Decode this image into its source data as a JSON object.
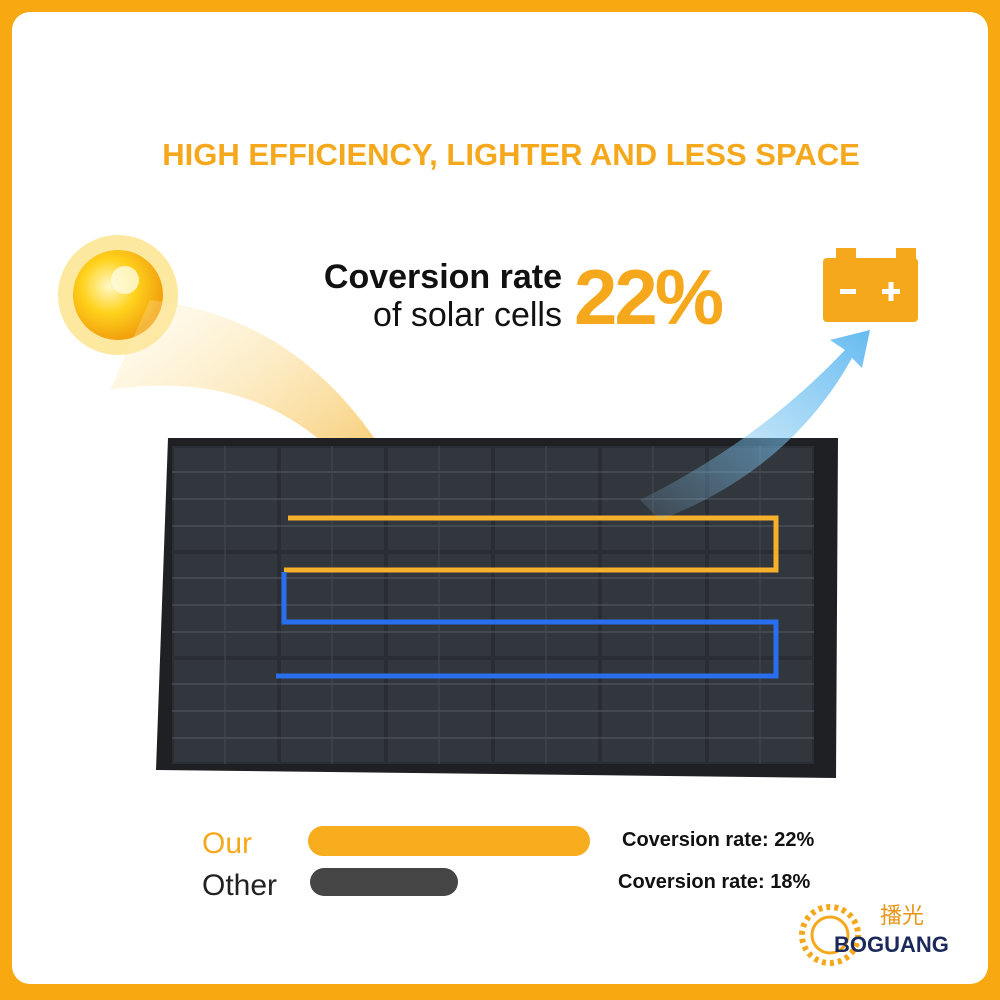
{
  "title": "HIGH EFFICIENCY, LIGHTER AND LESS SPACE",
  "headline": {
    "line1": "Coversion rate",
    "line2": "of solar cells",
    "rate": "22%"
  },
  "comparison": [
    {
      "label": "Our",
      "text": "Coversion rate: 22%"
    },
    {
      "label": "Other",
      "text": "Coversion rate: 18%"
    }
  ],
  "logo": {
    "chinese": "播光",
    "name": "BOGUANG"
  }
}
